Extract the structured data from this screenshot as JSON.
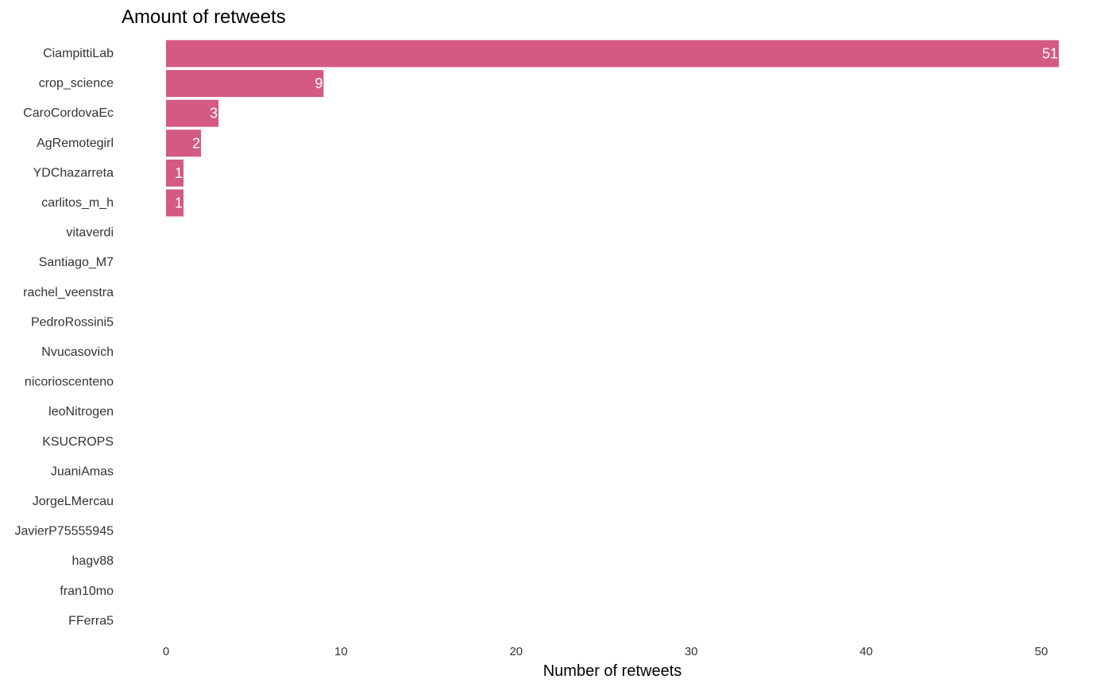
{
  "chart_data": {
    "type": "bar",
    "orientation": "horizontal",
    "title": "Amount of retweets",
    "xlabel": "Number of retweets",
    "ylabel": "",
    "xlim": [
      0,
      51
    ],
    "x_ticks": [
      0,
      10,
      20,
      30,
      40,
      50
    ],
    "grid": false,
    "bar_color": "#D45A82",
    "label_color": "#FFFFFF",
    "categories": [
      "CiampittiLab",
      "crop_science",
      "CaroCordovaEc",
      "AgRemotegirl",
      "YDChazarreta",
      "carlitos_m_h",
      "vitaverdi",
      "Santiago_M7",
      "rachel_veenstra",
      "PedroRossini5",
      "Nvucasovich",
      "nicorioscenteno",
      "leoNitrogen",
      "KSUCROPS",
      "JuaniAmas",
      "JorgeLMercau",
      "JavierP75555945",
      "hagv88",
      "fran10mo",
      "FFerra5"
    ],
    "values": [
      51,
      9,
      3,
      2,
      1,
      1,
      0,
      0,
      0,
      0,
      0,
      0,
      0,
      0,
      0,
      0,
      0,
      0,
      0,
      0
    ],
    "data_labels": [
      "51",
      "9",
      "3",
      "2",
      "1",
      "1",
      "",
      "",
      "",
      "",
      "",
      "",
      "",
      "",
      "",
      "",
      "",
      "",
      "",
      ""
    ]
  }
}
